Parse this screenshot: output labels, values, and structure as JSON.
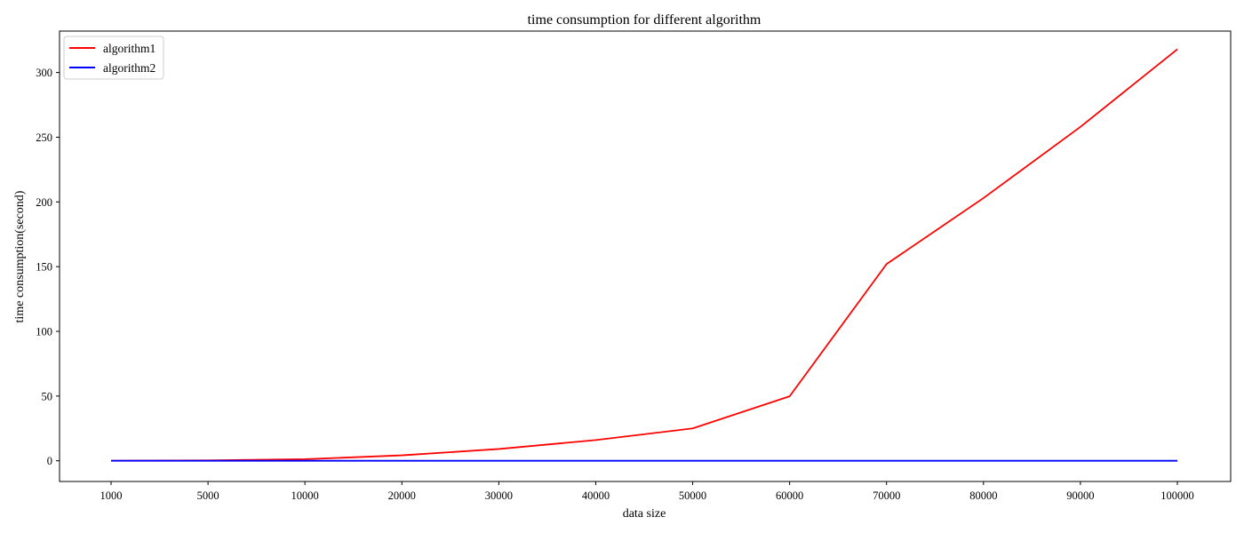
{
  "chart_data": {
    "type": "line",
    "title": "time consumption for different algorithm",
    "xlabel": "data size",
    "ylabel": "time consumption(second)",
    "categories": [
      "1000",
      "5000",
      "10000",
      "20000",
      "30000",
      "40000",
      "50000",
      "60000",
      "70000",
      "80000",
      "90000",
      "100000"
    ],
    "ylim": [
      -16,
      332
    ],
    "yticks": [
      0,
      50,
      100,
      150,
      200,
      250,
      300
    ],
    "grid": false,
    "legend_position": "upper-left",
    "series": [
      {
        "name": "algorithm1",
        "color": "#ff0000",
        "values": [
          0.03,
          0.3,
          1.2,
          4.2,
          9.1,
          16.0,
          25.0,
          49.8,
          152.0,
          203.0,
          258.0,
          318.0
        ]
      },
      {
        "name": "algorithm2",
        "color": "#0000ff",
        "values": [
          0.0,
          0.0,
          0.0,
          0.0,
          0.0,
          0.0,
          0.0,
          0.0,
          0.0,
          0.0,
          0.0,
          0.0
        ]
      }
    ]
  }
}
